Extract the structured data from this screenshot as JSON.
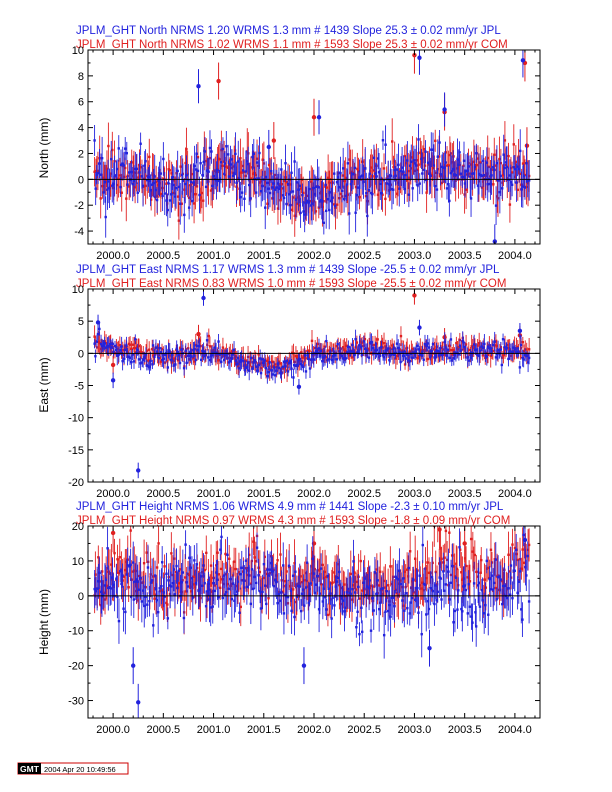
{
  "chart_data": [
    {
      "type": "scatter",
      "name": "north",
      "header_lines": [
        {
          "text": "JPLM_GHT North NRMS 1.20 WRMS  1.3 mm # 1439 Slope   25.3 ±  0.02 mm/yr JPL",
          "color": "#2222dd"
        },
        {
          "text": "JPLM_GHT North NRMS 1.02 WRMS  1.1 mm # 1593 Slope   25.3 ±  0.02 mm/yr COM",
          "color": "#e02020"
        }
      ],
      "ylabel": "North (mm)",
      "xlim": [
        1999.75,
        2004.25
      ],
      "ylim": [
        -5,
        10
      ],
      "xticks": [
        2000.0,
        2000.5,
        2001.0,
        2001.5,
        2002.0,
        2002.5,
        2003.0,
        2003.5,
        2004.0
      ],
      "xtick_labels": [
        "2000.0",
        "2000.5",
        "2001.0",
        "2001.5",
        "2002.0",
        "2002.5",
        "2003.0",
        "2003.5",
        "2004.0"
      ],
      "yticks": [
        -4,
        -2,
        0,
        2,
        4,
        6,
        8,
        10
      ],
      "ytick_labels": [
        "-4",
        "-2",
        "0",
        "2",
        "4",
        "6",
        "8",
        "10"
      ],
      "zero_line": true,
      "series": [
        {
          "color": "#e02020",
          "err": 1.3,
          "noise": 0.9,
          "count": 340,
          "trend": [
            [
              1999.8,
              0.6
            ],
            [
              2000.2,
              0.3
            ],
            [
              2000.6,
              -0.8
            ],
            [
              2000.9,
              -0.4
            ],
            [
              2001.1,
              1.0
            ],
            [
              2001.5,
              0.2
            ],
            [
              2001.8,
              -1.2
            ],
            [
              2002.0,
              -1.8
            ],
            [
              2002.3,
              0.0
            ],
            [
              2002.8,
              0.2
            ],
            [
              2003.1,
              1.0
            ],
            [
              2003.5,
              0.4
            ],
            [
              2003.8,
              0.5
            ],
            [
              2004.15,
              0.6
            ]
          ],
          "outliers": [
            [
              2001.05,
              7.6
            ],
            [
              2001.6,
              3.0
            ],
            [
              2002.0,
              4.8
            ],
            [
              2003.0,
              9.6
            ],
            [
              2003.3,
              5.2
            ],
            [
              2004.1,
              9.0
            ],
            [
              2004.12,
              2.6
            ]
          ]
        },
        {
          "color": "#2222dd",
          "err": 1.2,
          "noise": 1.0,
          "count": 340,
          "trend": [
            [
              1999.8,
              0.2
            ],
            [
              2000.2,
              0.8
            ],
            [
              2000.6,
              -1.3
            ],
            [
              2000.9,
              0.5
            ],
            [
              2001.1,
              1.0
            ],
            [
              2001.5,
              -0.2
            ],
            [
              2001.8,
              -1.4
            ],
            [
              2002.0,
              -2.2
            ],
            [
              2002.3,
              0.0
            ],
            [
              2002.8,
              0.5
            ],
            [
              2003.1,
              1.2
            ],
            [
              2003.5,
              0.4
            ],
            [
              2003.8,
              0.2
            ],
            [
              2004.15,
              0.4
            ]
          ],
          "outliers": [
            [
              2000.85,
              7.2
            ],
            [
              2001.55,
              2.5
            ],
            [
              2002.05,
              4.8
            ],
            [
              2003.05,
              9.4
            ],
            [
              2003.3,
              5.4
            ],
            [
              2003.8,
              -4.8
            ],
            [
              2004.08,
              9.2
            ]
          ]
        }
      ]
    },
    {
      "type": "scatter",
      "name": "east",
      "header_lines": [
        {
          "text": "JPLM_GHT East NRMS 1.17 WRMS  1.3 mm # 1439 Slope  -25.5 ±  0.02 mm/yr JPL",
          "color": "#2222dd"
        },
        {
          "text": "JPLM_GHT East NRMS 0.83 WRMS  1.0 mm # 1593 Slope  -25.5 ±  0.02 mm/yr COM",
          "color": "#e02020"
        }
      ],
      "ylabel": "East (mm)",
      "xlim": [
        1999.75,
        2004.25
      ],
      "ylim": [
        -20,
        10
      ],
      "xticks": [
        2000.0,
        2000.5,
        2001.0,
        2001.5,
        2002.0,
        2002.5,
        2003.0,
        2003.5,
        2004.0
      ],
      "xtick_labels": [
        "2000.0",
        "2000.5",
        "2001.0",
        "2001.5",
        "2002.0",
        "2002.5",
        "2003.0",
        "2003.5",
        "2004.0"
      ],
      "yticks": [
        -20,
        -15,
        -10,
        -5,
        0,
        5,
        10
      ],
      "ytick_labels": [
        "-20",
        "-15",
        "-10",
        "-5",
        "0",
        "5",
        "10"
      ],
      "zero_line": true,
      "series": [
        {
          "color": "#e02020",
          "err": 1.3,
          "noise": 0.7,
          "count": 340,
          "trend": [
            [
              1999.8,
              1.5
            ],
            [
              2000.2,
              0.5
            ],
            [
              2000.6,
              -0.3
            ],
            [
              2001.0,
              0.5
            ],
            [
              2001.4,
              -1.5
            ],
            [
              2001.7,
              -2.0
            ],
            [
              2002.0,
              0.2
            ],
            [
              2002.5,
              0.8
            ],
            [
              2003.0,
              0.2
            ],
            [
              2003.5,
              0.8
            ],
            [
              2004.15,
              0.2
            ]
          ],
          "outliers": [
            [
              2000.0,
              -1.8
            ],
            [
              2000.85,
              3.0
            ],
            [
              2003.0,
              9.0
            ],
            [
              2003.3,
              2.5
            ],
            [
              2004.05,
              2.8
            ]
          ]
        },
        {
          "color": "#2222dd",
          "err": 1.1,
          "noise": 0.8,
          "count": 340,
          "trend": [
            [
              1999.8,
              2.0
            ],
            [
              2000.2,
              -0.5
            ],
            [
              2000.6,
              -1.0
            ],
            [
              2001.0,
              0.0
            ],
            [
              2001.4,
              -2.0
            ],
            [
              2001.7,
              -2.5
            ],
            [
              2002.0,
              -0.5
            ],
            [
              2002.5,
              0.5
            ],
            [
              2003.0,
              0.0
            ],
            [
              2003.5,
              0.5
            ],
            [
              2004.15,
              -0.2
            ]
          ],
          "outliers": [
            [
              1999.85,
              4.8
            ],
            [
              2000.0,
              -4.2
            ],
            [
              2000.25,
              -18.2
            ],
            [
              2000.9,
              8.6
            ],
            [
              2001.85,
              -5.2
            ],
            [
              2003.05,
              4.0
            ],
            [
              2004.05,
              3.5
            ]
          ]
        }
      ]
    },
    {
      "type": "scatter",
      "name": "height",
      "header_lines": [
        {
          "text": "JPLM_GHT Height NRMS 1.06 WRMS  4.9 mm # 1441 Slope   -2.3 ±  0.10 mm/yr JPL",
          "color": "#2222dd"
        },
        {
          "text": "JPLM_GHT Height NRMS 0.97 WRMS  4.3 mm # 1593 Slope   -1.8 ±  0.09 mm/yr COM",
          "color": "#e02020"
        }
      ],
      "ylabel": "Height (mm)",
      "xlim": [
        1999.75,
        2004.25
      ],
      "ylim": [
        -35,
        20
      ],
      "xticks": [
        2000.0,
        2000.5,
        2001.0,
        2001.5,
        2002.0,
        2002.5,
        2003.0,
        2003.5,
        2004.0
      ],
      "xtick_labels": [
        "2000.0",
        "2000.5",
        "2001.0",
        "2001.5",
        "2002.0",
        "2002.5",
        "2003.0",
        "2003.5",
        "2004.0"
      ],
      "yticks": [
        -30,
        -20,
        -10,
        0,
        10,
        20
      ],
      "ytick_labels": [
        "-30",
        "-20",
        "-10",
        "0",
        "10",
        "20"
      ],
      "zero_line": true,
      "series": [
        {
          "color": "#e02020",
          "err": 5.0,
          "noise": 3.8,
          "count": 340,
          "trend": [
            [
              1999.8,
              2.0
            ],
            [
              2000.0,
              6.0
            ],
            [
              2000.5,
              4.0
            ],
            [
              2001.0,
              5.0
            ],
            [
              2001.5,
              6.0
            ],
            [
              2002.0,
              4.0
            ],
            [
              2002.5,
              2.0
            ],
            [
              2003.0,
              4.0
            ],
            [
              2003.3,
              10.0
            ],
            [
              2003.6,
              8.0
            ],
            [
              2003.8,
              5.0
            ],
            [
              2004.15,
              10.0
            ]
          ],
          "outliers": [
            [
              2000.0,
              18.0
            ],
            [
              2002.0,
              15.0
            ],
            [
              2003.25,
              19.0
            ],
            [
              2003.5,
              15.0
            ]
          ]
        },
        {
          "color": "#2222dd",
          "err": 4.8,
          "noise": 4.5,
          "count": 340,
          "trend": [
            [
              1999.8,
              0.0
            ],
            [
              2000.0,
              4.0
            ],
            [
              2000.5,
              2.0
            ],
            [
              2001.0,
              2.0
            ],
            [
              2001.5,
              3.0
            ],
            [
              2002.0,
              1.0
            ],
            [
              2002.5,
              -1.0
            ],
            [
              2003.0,
              0.0
            ],
            [
              2003.3,
              3.0
            ],
            [
              2003.6,
              -2.0
            ],
            [
              2003.8,
              0.0
            ],
            [
              2004.15,
              8.0
            ]
          ],
          "outliers": [
            [
              2000.2,
              -20.0
            ],
            [
              2000.25,
              -30.5
            ],
            [
              2001.9,
              -20.0
            ],
            [
              2003.15,
              -15.0
            ],
            [
              2004.1,
              16.0
            ]
          ]
        }
      ]
    }
  ],
  "footer": {
    "logo_text": "GMT",
    "timestamp": "2004 Apr 20 10:49:56"
  }
}
